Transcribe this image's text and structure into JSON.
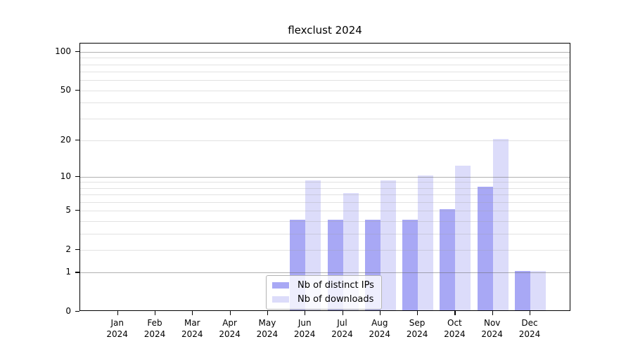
{
  "chart_data": {
    "type": "bar",
    "title": "flexclust 2024",
    "x_year": "2024",
    "categories": [
      "Jan",
      "Feb",
      "Mar",
      "Apr",
      "May",
      "Jun",
      "Jul",
      "Aug",
      "Sep",
      "Oct",
      "Nov",
      "Dec"
    ],
    "series": [
      {
        "name": "Nb of distinct IPs",
        "color": "#a8a8f5",
        "values": [
          0,
          0,
          0,
          0,
          0,
          4,
          4,
          4,
          4,
          5,
          8,
          1
        ]
      },
      {
        "name": "Nb of downloads",
        "color": "#dcdcfa",
        "values": [
          0,
          0,
          0,
          0,
          0,
          9,
          7,
          9,
          10,
          12,
          20,
          1
        ]
      }
    ],
    "y_axis": {
      "scale": "log1p",
      "tick_values": [
        0,
        1,
        2,
        5,
        10,
        20,
        50,
        100
      ],
      "major_gridlines": [
        1,
        10,
        100
      ],
      "minor_gridlines": [
        2,
        3,
        4,
        5,
        6,
        7,
        8,
        9,
        20,
        30,
        40,
        50,
        60,
        70,
        80,
        90
      ],
      "range": [
        0,
        116
      ]
    },
    "legend": {
      "position": "bottom-center"
    },
    "grid": true
  },
  "colors": {
    "bar_distinct_ips": "#a8a8f5",
    "bar_downloads": "#dcdcfa",
    "frame": "#000000",
    "background": "#ffffff"
  }
}
